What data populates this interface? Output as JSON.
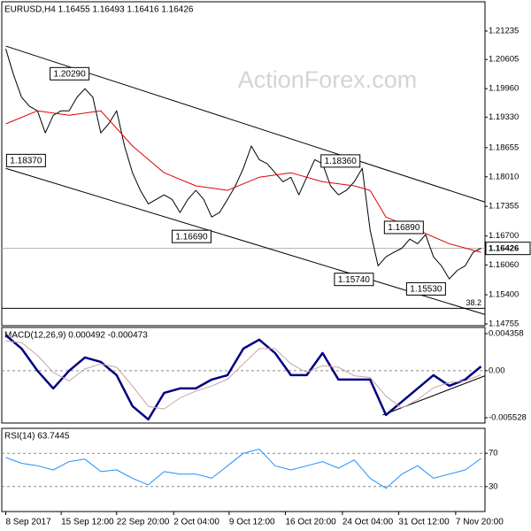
{
  "chart_data": [
    {
      "type": "line",
      "title": "EURUSD,H4  1.16455 1.16493 1.16416 1.16426",
      "watermark": "ActionForex.com",
      "xlim": [
        -0.5,
        60.5
      ],
      "ylim": [
        1.14716,
        1.21882
      ],
      "yticks": [
        1.21235,
        1.20605,
        {
          "value": 1.1996,
          "label": "1.19960"
        },
        {
          "value": 1.1933,
          "label": "1.19330"
        },
        1.18655,
        {
          "value": 1.1801,
          "label": "1.18010"
        },
        1.17355,
        {
          "value": 1.167,
          "label": "1.16700"
        },
        {
          "value": 1.1606,
          "label": "1.16060"
        },
        {
          "value": 1.154,
          "label": "1.15400"
        },
        1.14755
      ],
      "series": [
        {
          "color": "#000000",
          "x": [
            0,
            1,
            2,
            3,
            4,
            5,
            6,
            7,
            8,
            9,
            10,
            11,
            12,
            13,
            14,
            15,
            16,
            17,
            18,
            19,
            20,
            21,
            22,
            23,
            24,
            25,
            26,
            27,
            28,
            29,
            30,
            31,
            32,
            33,
            34,
            35,
            36,
            37,
            38,
            39,
            40,
            41,
            42,
            43,
            44,
            45,
            46,
            47,
            48,
            49,
            50,
            51,
            52,
            53,
            54,
            55,
            56,
            57,
            58,
            59,
            60
          ],
          "values": [
            1.2084,
            1.2026,
            1.1977,
            1.1957,
            1.1947,
            1.1898,
            1.1937,
            1.1947,
            1.1947,
            1.1977,
            1.1996,
            1.1977,
            1.1898,
            1.1918,
            1.1947,
            1.1869,
            1.181,
            1.1771,
            1.1741,
            1.1751,
            1.1761,
            1.1751,
            1.1722,
            1.1751,
            1.1771,
            1.1751,
            1.1712,
            1.1722,
            1.1751,
            1.1781,
            1.182,
            1.1869,
            1.1839,
            1.183,
            1.181,
            1.179,
            1.18,
            1.1761,
            1.18,
            1.1839,
            1.183,
            1.1781,
            1.1761,
            1.1771,
            1.179,
            1.182,
            1.1683,
            1.1604,
            1.1624,
            1.1634,
            1.1643,
            1.1663,
            1.1653,
            1.1673,
            1.1624,
            1.1604,
            1.1575,
            1.1594,
            1.1604,
            1.1634,
            1.1643
          ]
        },
        {
          "color": "#e00000",
          "x": [
            0,
            4,
            8,
            12,
            16,
            20,
            24,
            28,
            32,
            36,
            40,
            44,
            46,
            48,
            52,
            56,
            60
          ],
          "values": [
            1.1918,
            1.1947,
            1.1937,
            1.1947,
            1.1869,
            1.181,
            1.1781,
            1.1771,
            1.18,
            1.181,
            1.179,
            1.1781,
            1.1771,
            1.1712,
            1.1683,
            1.1653,
            1.1634
          ]
        }
      ],
      "trendlines": [
        {
          "x": [
            0,
            60.5
          ],
          "values": [
            1.20902,
            1.17452
          ]
        },
        {
          "x": [
            0,
            60.5
          ],
          "values": [
            1.18197,
            1.14963
          ]
        }
      ],
      "levels": [
        {
          "x": 5.6,
          "value": 1.2029,
          "label": "1.20290"
        },
        {
          "x": 0.1,
          "value": 1.1837,
          "label": "1.18370"
        },
        {
          "x": 21,
          "value": 1.1669,
          "label": "1.16690"
        },
        {
          "x": 39.8,
          "value": 1.1836,
          "label": "1.18360"
        },
        {
          "x": 47.8,
          "value": 1.1689,
          "label": "1.16890"
        },
        {
          "x": 41.5,
          "value": 1.1574,
          "label": "1.15740"
        },
        {
          "x": 50.6,
          "value": 1.1553,
          "label": "1.15530"
        }
      ],
      "hlines": [
        {
          "value": 1.151,
          "label": "38.2"
        }
      ],
      "last_price": 1.16426
    },
    {
      "type": "line",
      "title": "MACD(12,26,9) 0.000492 -0.000473",
      "xlim": [
        -0.5,
        60.5
      ],
      "ylim": [
        -0.00615,
        0.00508
      ],
      "yticks": [
        0.004358,
        {
          "value": 0,
          "label": "0.00"
        },
        -0.005528
      ],
      "dashed_lines": [
        0
      ],
      "series": [
        {
          "color": "#000080",
          "width": 2.5,
          "x": [
            0,
            2,
            4,
            6,
            8,
            10,
            12,
            14,
            16,
            18,
            20,
            22,
            24,
            26,
            28,
            30,
            32,
            34,
            36,
            38,
            40,
            42,
            44,
            46,
            48,
            50,
            52,
            54,
            56,
            58,
            60
          ],
          "values": [
            0.00416,
            0.0026,
            0,
            -0.00208,
            0,
            0.00156,
            0.00104,
            -0.00052,
            -0.00416,
            -0.00572,
            -0.0026,
            -0.00208,
            -0.00208,
            -0.00104,
            -0.00052,
            0.0026,
            0.00364,
            0.00208,
            -0.00052,
            -0.00052,
            0.00208,
            -0.00104,
            -0.00104,
            -0.00104,
            -0.0052,
            -0.00364,
            -0.00208,
            -0.00052,
            -0.00177,
            -0.00104,
            0.00049
          ]
        },
        {
          "color": "#c9a3a3",
          "width": 1,
          "x": [
            0,
            2,
            4,
            6,
            8,
            10,
            12,
            14,
            16,
            18,
            20,
            22,
            24,
            26,
            28,
            30,
            32,
            34,
            36,
            38,
            40,
            42,
            44,
            46,
            48,
            50,
            52,
            54,
            56,
            58,
            60
          ],
          "values": [
            0.0035,
            0.0033,
            0.0018,
            -0.0002,
            -0.0012,
            0.0002,
            0.0008,
            0.0004,
            -0.0018,
            -0.0042,
            -0.0045,
            -0.0032,
            -0.0024,
            -0.0018,
            -0.001,
            0.0008,
            0.0026,
            0.0026,
            0.0008,
            -0.0002,
            0.0006,
            0.0004,
            -0.0006,
            -0.0008,
            -0.003,
            -0.0044,
            -0.0034,
            -0.002,
            -0.0014,
            -0.0012,
            -0.00047
          ]
        }
      ],
      "trendlines": [
        {
          "x": [
            47.6,
            60.5
          ],
          "values": [
            -0.0052,
            -0.0006
          ]
        }
      ]
    },
    {
      "type": "line",
      "title": "RSI(14) 63.7445",
      "xlim": [
        -0.5,
        60.5
      ],
      "ylim": [
        0,
        100
      ],
      "yticks": [
        70,
        30
      ],
      "dashed_lines": [
        70,
        30
      ],
      "xticks": [
        {
          "value": 0,
          "label": "8 Sep 2017"
        },
        {
          "value": 7,
          "label": "15 Sep 12:00"
        },
        {
          "value": 14,
          "label": "22 Sep 20:00"
        },
        {
          "value": 21.2,
          "label": "2 Oct 04:00"
        },
        {
          "value": 28.2,
          "label": "9 Oct 12:00"
        },
        {
          "value": 35.3,
          "label": "16 Oct 20:00"
        },
        {
          "value": 42.5,
          "label": "24 Oct 04:00"
        },
        {
          "value": 49.6,
          "label": "31 Oct 12:00"
        },
        {
          "value": 56.8,
          "label": "7 Nov 20:00"
        }
      ],
      "series": [
        {
          "color": "#1e90ff",
          "width": 1,
          "x": [
            0,
            2,
            4,
            6,
            8,
            10,
            12,
            14,
            16,
            18,
            20,
            22,
            24,
            26,
            28,
            30,
            32,
            34,
            36,
            38,
            40,
            42,
            44,
            46,
            48,
            50,
            52,
            54,
            56,
            58,
            60
          ],
          "values": [
            65,
            58,
            55,
            50,
            60,
            63,
            48,
            50,
            40,
            32,
            48,
            45,
            45,
            40,
            55,
            70,
            75,
            55,
            50,
            55,
            60,
            52,
            62,
            40,
            28,
            45,
            55,
            40,
            45,
            50,
            63.7445
          ]
        }
      ]
    }
  ]
}
